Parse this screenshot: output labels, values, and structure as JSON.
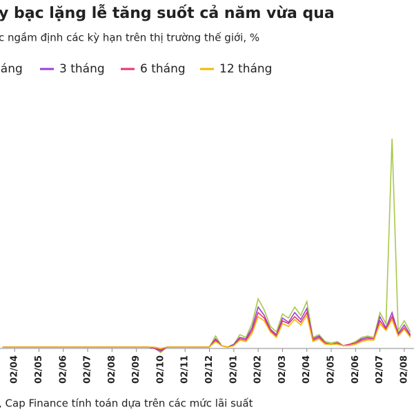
{
  "chart_data": {
    "type": "line",
    "title": "y bạc lặng lễ tăng suốt cả năm vừa qua",
    "subtitle": "c ngầm định các kỳ hạn trên thị trường thế giới, %",
    "source": ", Cap Finance tính toán dựa trên các mức lãi suất",
    "xlim": [
      -0.6,
      16.4
    ],
    "ylim": [
      -1,
      19
    ],
    "xticks": [
      {
        "value": 0,
        "label": "02/04"
      },
      {
        "value": 1,
        "label": "02/05"
      },
      {
        "value": 2,
        "label": "02/06"
      },
      {
        "value": 3,
        "label": "02/07"
      },
      {
        "value": 4,
        "label": "02/08"
      },
      {
        "value": 5,
        "label": "02/09"
      },
      {
        "value": 6,
        "label": "02/10"
      },
      {
        "value": 7,
        "label": "02/11"
      },
      {
        "value": 8,
        "label": "02/12"
      },
      {
        "value": 9,
        "label": "02/01"
      },
      {
        "value": 10,
        "label": "02/02"
      },
      {
        "value": 11,
        "label": "02/03"
      },
      {
        "value": 12,
        "label": "02/04"
      },
      {
        "value": 13,
        "label": "02/05"
      },
      {
        "value": 14,
        "label": "02/06"
      },
      {
        "value": 15,
        "label": "02/07"
      },
      {
        "value": 16,
        "label": "02/08"
      }
    ],
    "x": [
      -0.5,
      -0.25,
      0,
      0.25,
      0.5,
      0.75,
      1,
      1.25,
      1.5,
      1.75,
      2,
      2.25,
      2.5,
      2.75,
      3,
      3.25,
      3.5,
      3.75,
      4,
      4.25,
      4.5,
      4.75,
      5,
      5.25,
      5.5,
      5.75,
      6,
      6.25,
      6.5,
      6.75,
      7,
      7.25,
      7.5,
      7.75,
      8,
      8.25,
      8.5,
      8.75,
      9,
      9.25,
      9.5,
      9.75,
      10,
      10.25,
      10.5,
      10.75,
      11,
      11.25,
      11.5,
      11.75,
      12,
      12.25,
      12.5,
      12.75,
      13,
      13.25,
      13.5,
      13.75,
      14,
      14.25,
      14.5,
      14.75,
      15,
      15.25,
      15.5,
      15.75,
      16,
      16.25
    ],
    "series": [
      {
        "name": "háng",
        "color": "#a6c84a",
        "values": [
          0.1,
          0.1,
          0.1,
          0.1,
          0.1,
          0.1,
          0.1,
          0.1,
          0.1,
          0.1,
          0.1,
          0.1,
          0.1,
          0.1,
          0.1,
          0.1,
          0.1,
          0.1,
          0.1,
          0.1,
          0.1,
          0.1,
          0.1,
          0.1,
          0.1,
          0.0,
          -0.3,
          0.1,
          0.1,
          0.1,
          0.1,
          0.1,
          0.1,
          0.1,
          0.1,
          0.9,
          0.2,
          0.1,
          0.3,
          1.0,
          0.8,
          1.8,
          3.6,
          2.8,
          1.6,
          1.2,
          2.5,
          2.2,
          3.0,
          2.4,
          3.4,
          0.8,
          1.0,
          0.5,
          0.4,
          0.5,
          0.2,
          0.3,
          0.5,
          0.8,
          0.9,
          0.8,
          2.6,
          1.8,
          15.2,
          1.3,
          2.0,
          1.2
        ]
      },
      {
        "name": "3 tháng",
        "color": "#9b3fd1",
        "values": [
          0.1,
          0.1,
          0.1,
          0.1,
          0.1,
          0.1,
          0.1,
          0.1,
          0.1,
          0.1,
          0.1,
          0.1,
          0.1,
          0.1,
          0.1,
          0.1,
          0.1,
          0.1,
          0.1,
          0.1,
          0.1,
          0.1,
          0.1,
          0.1,
          0.1,
          0.0,
          -0.2,
          0.1,
          0.1,
          0.1,
          0.1,
          0.1,
          0.1,
          0.1,
          0.1,
          0.7,
          0.2,
          0.1,
          0.3,
          0.8,
          0.7,
          1.5,
          3.0,
          2.4,
          1.4,
          1.0,
          2.2,
          1.9,
          2.6,
          2.1,
          2.9,
          0.7,
          0.9,
          0.4,
          0.3,
          0.4,
          0.2,
          0.3,
          0.4,
          0.7,
          0.8,
          0.7,
          2.3,
          1.5,
          2.6,
          1.1,
          1.7,
          1.0
        ]
      },
      {
        "name": "6 tháng",
        "color": "#e8336d",
        "values": [
          0.1,
          0.1,
          0.1,
          0.1,
          0.1,
          0.1,
          0.1,
          0.1,
          0.1,
          0.1,
          0.1,
          0.1,
          0.1,
          0.1,
          0.1,
          0.1,
          0.1,
          0.1,
          0.1,
          0.1,
          0.1,
          0.1,
          0.1,
          0.1,
          0.1,
          0.0,
          -0.1,
          0.1,
          0.1,
          0.1,
          0.1,
          0.1,
          0.1,
          0.1,
          0.1,
          0.6,
          0.2,
          0.1,
          0.2,
          0.7,
          0.6,
          1.3,
          2.6,
          2.2,
          1.3,
          0.9,
          2.0,
          1.8,
          2.3,
          1.9,
          2.6,
          0.6,
          0.8,
          0.4,
          0.3,
          0.4,
          0.2,
          0.3,
          0.4,
          0.6,
          0.7,
          0.7,
          2.0,
          1.4,
          2.3,
          1.0,
          1.5,
          0.9
        ]
      },
      {
        "name": "12 tháng",
        "color": "#f5b800",
        "values": [
          0.1,
          0.1,
          0.1,
          0.1,
          0.1,
          0.1,
          0.1,
          0.1,
          0.1,
          0.1,
          0.1,
          0.1,
          0.1,
          0.1,
          0.1,
          0.1,
          0.1,
          0.1,
          0.1,
          0.1,
          0.1,
          0.1,
          0.1,
          0.1,
          0.1,
          0.1,
          0.0,
          0.1,
          0.1,
          0.1,
          0.1,
          0.1,
          0.1,
          0.1,
          0.1,
          0.5,
          0.2,
          0.1,
          0.2,
          0.6,
          0.5,
          1.1,
          2.3,
          2.0,
          1.2,
          0.8,
          1.8,
          1.6,
          2.1,
          1.7,
          2.4,
          0.5,
          0.7,
          0.3,
          0.3,
          0.3,
          0.2,
          0.2,
          0.3,
          0.5,
          0.6,
          0.6,
          1.8,
          1.3,
          2.1,
          0.9,
          1.4,
          0.8
        ]
      }
    ]
  }
}
